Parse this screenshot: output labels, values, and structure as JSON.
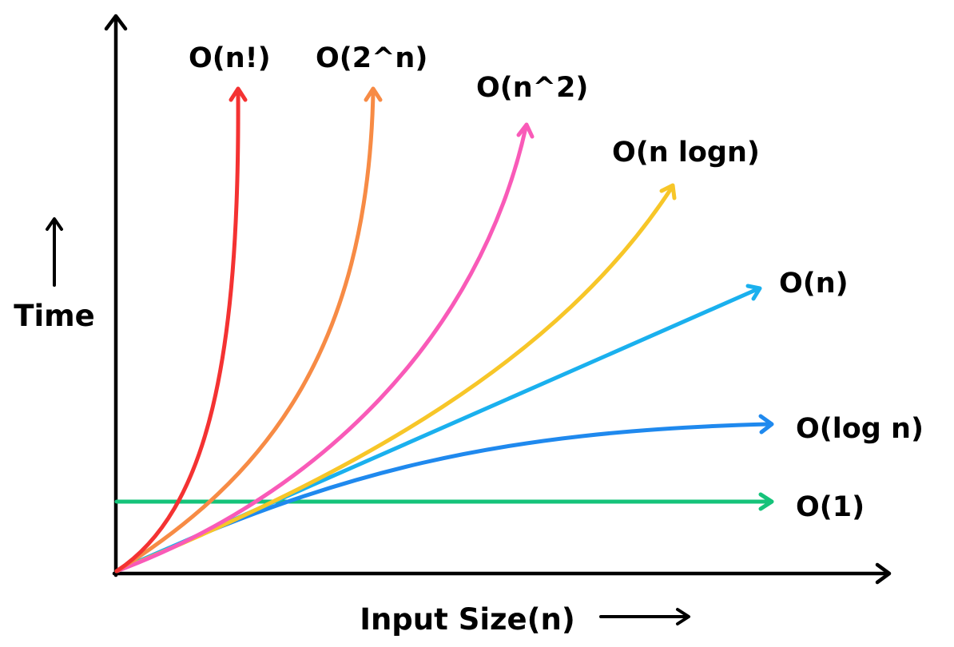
{
  "axes": {
    "y_label": "Time",
    "x_label": "Input Size(n)"
  },
  "curves": [
    {
      "label": "O(n!)",
      "color": "#f43232"
    },
    {
      "label": "O(2^n)",
      "color": "#f78b45"
    },
    {
      "label": "O(n^2)",
      "color": "#f95ab8"
    },
    {
      "label": "O(n logn)",
      "color": "#f7c628"
    },
    {
      "label": "O(n)",
      "color": "#1ab0ee"
    },
    {
      "label": "O(log n)",
      "color": "#1f89ee"
    },
    {
      "label": "O(1)",
      "color": "#15c37a"
    }
  ],
  "axis_color": "#000000"
}
